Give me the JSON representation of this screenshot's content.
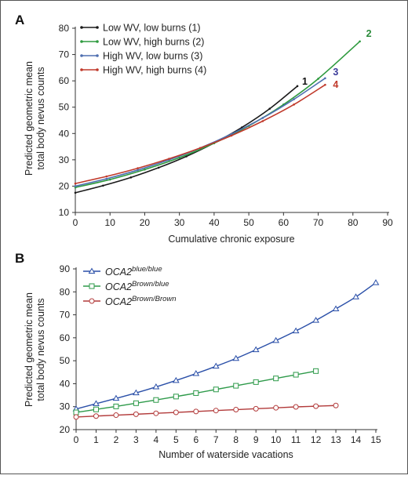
{
  "chart_data": [
    {
      "panel": "A",
      "type": "line",
      "xlabel": "Cumulative chronic exposure",
      "ylabel": [
        "Predicted geometric mean",
        "total body nevus counts"
      ],
      "xlim": [
        0,
        90
      ],
      "ylim": [
        10,
        80
      ],
      "xticks": [
        0,
        10,
        20,
        30,
        40,
        50,
        60,
        70,
        80,
        90
      ],
      "yticks": [
        10,
        20,
        30,
        40,
        50,
        60,
        70,
        80
      ],
      "legend_position": "top-left",
      "grid": false,
      "series": [
        {
          "name": "Low WV,  low burns  (1)",
          "end_label": "1",
          "color": "#1a1a1a",
          "label_color": "#111111",
          "x": [
            0,
            8,
            16,
            24,
            32,
            40,
            48,
            56,
            64
          ],
          "y": [
            17.5,
            20.2,
            23.3,
            27.0,
            31.3,
            36.4,
            42.3,
            49.4,
            58.0
          ]
        },
        {
          "name": "Low WV,  high burns (2)",
          "end_label": "2",
          "color": "#2e9a3e",
          "label_color": "#2a8a3a",
          "x": [
            0,
            10,
            20,
            30,
            40,
            50,
            60,
            70,
            82
          ],
          "y": [
            19.5,
            22.5,
            26.3,
            30.8,
            36.3,
            42.9,
            51.0,
            60.8,
            75.0
          ]
        },
        {
          "name": "High WV, low burns  (3)",
          "end_label": "3",
          "color": "#4f6fb0",
          "label_color": "#3b3b9a",
          "x": [
            0,
            9,
            18,
            27,
            36,
            45,
            54,
            63,
            72
          ],
          "y": [
            20.0,
            22.8,
            26.1,
            30.0,
            34.5,
            39.8,
            45.9,
            53.0,
            61.0
          ]
        },
        {
          "name": "High WV, high burns (4)",
          "end_label": "4",
          "color": "#c0392b",
          "label_color": "#c0392b",
          "x": [
            0,
            9,
            18,
            27,
            36,
            45,
            54,
            63,
            72
          ],
          "y": [
            21.0,
            23.7,
            26.8,
            30.4,
            34.5,
            39.2,
            44.7,
            51.0,
            58.5
          ]
        }
      ]
    },
    {
      "panel": "B",
      "type": "line",
      "xlabel": "Number of waterside vacations",
      "ylabel": [
        "Predicted geometric mean",
        "total body nevus counts"
      ],
      "xlim": [
        0,
        15
      ],
      "ylim": [
        20,
        90
      ],
      "xticks": [
        0,
        1,
        2,
        3,
        4,
        5,
        6,
        7,
        8,
        9,
        10,
        11,
        12,
        13,
        14,
        15
      ],
      "yticks": [
        20,
        30,
        40,
        50,
        60,
        70,
        80,
        90
      ],
      "legend_position": "top-left",
      "grid": false,
      "series": [
        {
          "name": "OCA2",
          "superscript": "blue/blue",
          "color": "#2a4fa8",
          "marker": "triangle",
          "x": [
            0,
            1,
            2,
            3,
            4,
            5,
            6,
            7,
            8,
            9,
            10,
            11,
            12,
            13,
            14,
            15
          ],
          "y": [
            29.0,
            31.3,
            33.6,
            36.0,
            38.6,
            41.4,
            44.4,
            47.6,
            51.0,
            54.8,
            58.8,
            63.0,
            67.6,
            72.6,
            77.8,
            84.0
          ]
        },
        {
          "name": "OCA2",
          "superscript": "Brown/blue",
          "color": "#2e9a4a",
          "marker": "square",
          "x": [
            0,
            1,
            2,
            3,
            4,
            5,
            6,
            7,
            8,
            9,
            10,
            11,
            12
          ],
          "y": [
            27.5,
            28.8,
            30.1,
            31.5,
            32.9,
            34.4,
            35.9,
            37.5,
            39.1,
            40.7,
            42.3,
            43.9,
            45.5
          ]
        },
        {
          "name": "OCA2",
          "superscript": "Brown/Brown",
          "color": "#b23a3a",
          "marker": "circle",
          "x": [
            0,
            1,
            2,
            3,
            4,
            5,
            6,
            7,
            8,
            9,
            10,
            11,
            12,
            13
          ],
          "y": [
            25.5,
            25.9,
            26.3,
            26.7,
            27.1,
            27.5,
            27.9,
            28.3,
            28.7,
            29.1,
            29.5,
            29.9,
            30.2,
            30.5
          ]
        }
      ]
    }
  ]
}
